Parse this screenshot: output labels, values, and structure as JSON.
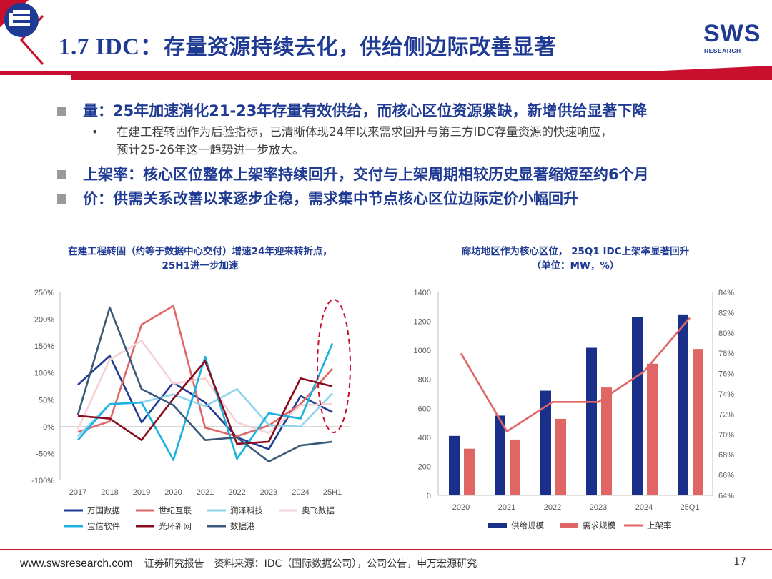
{
  "header": {
    "title_prefix": "1.7 IDC：",
    "title_main": "存量资源持续去化，供给侧边际改善显著",
    "logo_text": "SWS",
    "logo_sub": "RESEARCH"
  },
  "bullets": {
    "b1": "量：25年加速消化21-23年存量有效供给，而核心区位资源紧缺，新增供给显著下降",
    "b1_sub_line1": "在建工程转固作为后验指标，已清晰体现24年以来需求回升与第三方IDC存量资源的快速响应，",
    "b1_sub_line2": "预计25-26年这一趋势进一步放大。",
    "b1_sub_dot": "•",
    "b2": "上架率：核心区位整体上架率持续回升，交付与上架周期相较历史显著缩短至约6个月",
    "b3": "价：供需关系改善以来逐步企稳，需求集中节点核心区位边际定价小幅回升"
  },
  "chart_left_title": {
    "line1": "在建工程转固（约等于数据中心交付）增速24年迎来转折点，",
    "line2": "25H1进一步加速"
  },
  "chart_right_title": {
    "line1": "廊坊地区作为核心区位， 25Q1 IDC上架率显著回升",
    "line2": "（单位：MW，%）"
  },
  "footer": {
    "url": "www.swsresearch.com",
    "text": "证券研究报告　资料来源：IDC（国际数据公司），公司公告，申万宏源研究",
    "page": "17"
  },
  "colors": {
    "brand_blue": "#1f3a93",
    "brand_red": "#c8102e"
  },
  "chart_data": [
    {
      "type": "line",
      "x": [
        "2017",
        "2018",
        "2019",
        "2020",
        "2021",
        "2022",
        "2023",
        "2024",
        "25H1"
      ],
      "ylim": [
        -100,
        250
      ],
      "yticks": [
        "250%",
        "200%",
        "150%",
        "100%",
        "50%",
        "0%",
        "-50%",
        "-100%"
      ],
      "grid": false,
      "legend": "bottom",
      "annotation": "dashed red ellipse around 25H1",
      "series": [
        {
          "name": "万国数据",
          "color": "#1f3a93",
          "values": [
            78,
            132,
            8,
            82,
            45,
            -20,
            -42,
            57,
            27
          ]
        },
        {
          "name": "世纪互联",
          "color": "#e06666",
          "values": [
            -10,
            10,
            190,
            225,
            -2,
            -18,
            2,
            42,
            108
          ]
        },
        {
          "name": "润泽科技",
          "color": "#8fd3ec",
          "values": [
            -18,
            42,
            45,
            60,
            38,
            70,
            3,
            0,
            62
          ]
        },
        {
          "name": "奥飞数据",
          "color": "#f7d1d4",
          "values": [
            -5,
            125,
            160,
            80,
            90,
            8,
            -12,
            40,
            42
          ]
        },
        {
          "name": "宝信软件",
          "color": "#1ab0e0",
          "values": [
            -25,
            42,
            45,
            -62,
            130,
            -60,
            25,
            15,
            155
          ]
        },
        {
          "name": "光环新网",
          "color": "#8b0a1e",
          "values": [
            20,
            15,
            -25,
            52,
            122,
            -32,
            -28,
            90,
            75
          ]
        },
        {
          "name": "数据港",
          "color": "#3a5a7a",
          "values": [
            22,
            222,
            70,
            40,
            -25,
            -20,
            -65,
            -35,
            -28
          ]
        }
      ]
    },
    {
      "type": "bar",
      "categories": [
        "2020",
        "2021",
        "2022",
        "2023",
        "2024",
        "25Q1"
      ],
      "ylim": [
        0,
        1400
      ],
      "yticks": [
        "1400",
        "1200",
        "1000",
        "800",
        "600",
        "400",
        "200",
        "0"
      ],
      "y2lim": [
        64,
        84
      ],
      "y2ticks": [
        "84%",
        "82%",
        "80%",
        "78%",
        "76%",
        "74%",
        "72%",
        "70%",
        "68%",
        "66%",
        "64%"
      ],
      "grid": false,
      "legend": "bottom",
      "series": [
        {
          "name": "供给规模",
          "type": "bar",
          "color": "#1a2f8a",
          "values": [
            410,
            550,
            722,
            1018,
            1228,
            1248
          ]
        },
        {
          "name": "需求规模",
          "type": "bar",
          "color": "#e06666",
          "values": [
            322,
            385,
            528,
            744,
            908,
            1010
          ]
        },
        {
          "name": "上架率",
          "type": "line",
          "axis": "right",
          "color": "#e06666",
          "values": [
            78.0,
            70.3,
            73.2,
            73.2,
            76.2,
            81.5
          ]
        }
      ]
    }
  ]
}
